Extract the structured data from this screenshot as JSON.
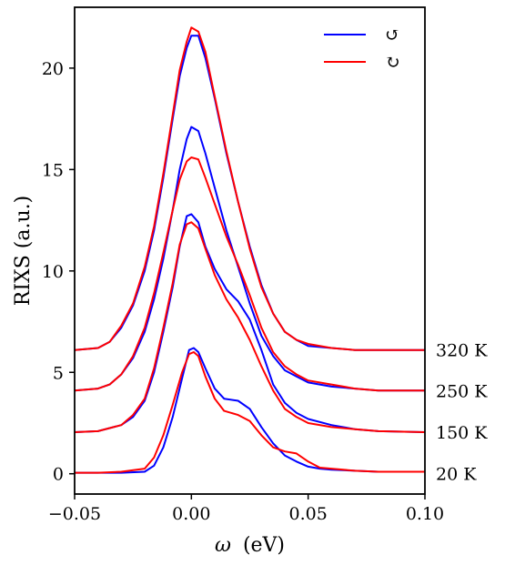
{
  "chart_data": {
    "type": "line",
    "xlabel_symbol": "ω",
    "xlabel_unit": "(eV)",
    "ylabel": "RIXS (a.u.)",
    "xlim": [
      -0.05,
      0.1
    ],
    "ylim": [
      -1.0,
      23.0
    ],
    "xticks": [
      -0.05,
      0.0,
      0.05,
      0.1
    ],
    "xtick_labels": [
      "−0.05",
      "0.00",
      "0.05",
      "0.10"
    ],
    "yticks": [
      0,
      5,
      10,
      15,
      20
    ],
    "ytick_labels": [
      "0",
      "5",
      "10",
      "15",
      "20"
    ],
    "legend": {
      "position": "top-right",
      "entries": [
        {
          "label": "↺",
          "color": "#0000ff"
        },
        {
          "label": "↻",
          "color": "#ff0000"
        }
      ]
    },
    "series": [
      {
        "temperature": "20 K",
        "label_y": 0.0,
        "color": "#0000ff",
        "x": [
          -0.05,
          -0.04,
          -0.03,
          -0.02,
          -0.016,
          -0.012,
          -0.008,
          -0.004,
          -0.001,
          0.001,
          0.003,
          0.006,
          0.01,
          0.014,
          0.02,
          0.025,
          0.03,
          0.035,
          0.04,
          0.045,
          0.05,
          0.055,
          0.06,
          0.07,
          0.08,
          0.09,
          0.1
        ],
        "y": [
          0.05,
          0.05,
          0.05,
          0.1,
          0.4,
          1.3,
          2.8,
          4.7,
          6.1,
          6.2,
          6.0,
          5.2,
          4.2,
          3.7,
          3.6,
          3.2,
          2.3,
          1.5,
          0.9,
          0.6,
          0.35,
          0.25,
          0.2,
          0.15,
          0.1,
          0.1,
          0.1
        ]
      },
      {
        "temperature": "20 K",
        "label_y": 0.0,
        "color": "#ff0000",
        "x": [
          -0.05,
          -0.04,
          -0.03,
          -0.02,
          -0.016,
          -0.012,
          -0.008,
          -0.004,
          -0.001,
          0.001,
          0.003,
          0.006,
          0.01,
          0.014,
          0.02,
          0.025,
          0.03,
          0.035,
          0.04,
          0.045,
          0.05,
          0.055,
          0.06,
          0.07,
          0.08,
          0.09,
          0.1
        ],
        "y": [
          0.05,
          0.05,
          0.1,
          0.25,
          0.8,
          1.9,
          3.4,
          5.0,
          5.9,
          6.0,
          5.8,
          4.8,
          3.7,
          3.1,
          2.9,
          2.6,
          1.9,
          1.3,
          1.1,
          1.0,
          0.6,
          0.3,
          0.25,
          0.15,
          0.1,
          0.1,
          0.1
        ]
      },
      {
        "temperature": "150 K",
        "label_y": 2.05,
        "color": "#0000ff",
        "x": [
          -0.05,
          -0.04,
          -0.03,
          -0.025,
          -0.02,
          -0.016,
          -0.012,
          -0.008,
          -0.005,
          -0.002,
          0.0,
          0.003,
          0.006,
          0.01,
          0.015,
          0.02,
          0.025,
          0.03,
          0.035,
          0.04,
          0.045,
          0.05,
          0.06,
          0.07,
          0.08,
          0.1
        ],
        "y": [
          2.05,
          2.1,
          2.4,
          2.8,
          3.6,
          5.0,
          7.0,
          9.2,
          11.2,
          12.7,
          12.8,
          12.4,
          11.2,
          10.1,
          9.1,
          8.5,
          7.6,
          6.1,
          4.4,
          3.5,
          3.0,
          2.7,
          2.4,
          2.2,
          2.1,
          2.05
        ]
      },
      {
        "temperature": "150 K",
        "label_y": 2.05,
        "color": "#ff0000",
        "x": [
          -0.05,
          -0.04,
          -0.03,
          -0.025,
          -0.02,
          -0.016,
          -0.012,
          -0.008,
          -0.005,
          -0.002,
          0.0,
          0.003,
          0.006,
          0.01,
          0.015,
          0.02,
          0.025,
          0.03,
          0.035,
          0.04,
          0.045,
          0.05,
          0.06,
          0.07,
          0.08,
          0.1
        ],
        "y": [
          2.05,
          2.1,
          2.4,
          2.9,
          3.7,
          5.2,
          7.2,
          9.4,
          11.3,
          12.3,
          12.4,
          12.1,
          11.1,
          9.8,
          8.6,
          7.7,
          6.6,
          5.3,
          4.1,
          3.2,
          2.8,
          2.5,
          2.3,
          2.2,
          2.1,
          2.05
        ]
      },
      {
        "temperature": "250 K",
        "label_y": 4.1,
        "color": "#0000ff",
        "x": [
          -0.05,
          -0.04,
          -0.035,
          -0.03,
          -0.025,
          -0.02,
          -0.016,
          -0.012,
          -0.008,
          -0.005,
          -0.002,
          0.0,
          0.003,
          0.006,
          0.01,
          0.015,
          0.02,
          0.025,
          0.03,
          0.035,
          0.04,
          0.045,
          0.05,
          0.06,
          0.07,
          0.08,
          0.1
        ],
        "y": [
          4.1,
          4.2,
          4.4,
          4.9,
          5.7,
          7.0,
          8.6,
          10.6,
          13.0,
          15.0,
          16.5,
          17.1,
          16.9,
          15.8,
          14.1,
          12.0,
          10.2,
          8.4,
          6.8,
          5.8,
          5.1,
          4.8,
          4.5,
          4.3,
          4.2,
          4.1,
          4.1
        ]
      },
      {
        "temperature": "250 K",
        "label_y": 4.1,
        "color": "#ff0000",
        "x": [
          -0.05,
          -0.04,
          -0.035,
          -0.03,
          -0.025,
          -0.02,
          -0.016,
          -0.012,
          -0.008,
          -0.005,
          -0.002,
          0.0,
          0.003,
          0.006,
          0.01,
          0.015,
          0.02,
          0.025,
          0.03,
          0.035,
          0.04,
          0.045,
          0.05,
          0.06,
          0.07,
          0.08,
          0.1
        ],
        "y": [
          4.1,
          4.2,
          4.4,
          4.9,
          5.8,
          7.2,
          8.9,
          10.9,
          13.0,
          14.5,
          15.4,
          15.6,
          15.5,
          14.6,
          13.3,
          11.7,
          10.3,
          8.8,
          7.2,
          6.0,
          5.3,
          4.9,
          4.6,
          4.4,
          4.2,
          4.1,
          4.1
        ]
      },
      {
        "temperature": "320 K",
        "label_y": 6.1,
        "color": "#0000ff",
        "x": [
          -0.05,
          -0.04,
          -0.035,
          -0.03,
          -0.025,
          -0.02,
          -0.016,
          -0.012,
          -0.008,
          -0.005,
          -0.002,
          0.0,
          0.003,
          0.006,
          0.01,
          0.015,
          0.02,
          0.025,
          0.03,
          0.035,
          0.04,
          0.045,
          0.05,
          0.06,
          0.07,
          0.08,
          0.1
        ],
        "y": [
          6.1,
          6.2,
          6.5,
          7.2,
          8.3,
          10.0,
          12.0,
          14.6,
          17.5,
          19.6,
          21.0,
          21.6,
          21.6,
          20.5,
          18.5,
          15.8,
          13.4,
          11.2,
          9.3,
          7.9,
          7.0,
          6.6,
          6.3,
          6.2,
          6.1,
          6.1,
          6.1
        ]
      },
      {
        "temperature": "320 K",
        "label_y": 6.1,
        "color": "#ff0000",
        "x": [
          -0.05,
          -0.04,
          -0.035,
          -0.03,
          -0.025,
          -0.02,
          -0.016,
          -0.012,
          -0.008,
          -0.005,
          -0.002,
          0.0,
          0.003,
          0.006,
          0.01,
          0.015,
          0.02,
          0.025,
          0.03,
          0.035,
          0.04,
          0.045,
          0.05,
          0.06,
          0.07,
          0.08,
          0.1
        ],
        "y": [
          6.1,
          6.2,
          6.5,
          7.3,
          8.4,
          10.2,
          12.2,
          14.8,
          17.7,
          19.9,
          21.3,
          22.0,
          21.8,
          20.8,
          18.6,
          15.9,
          13.4,
          11.1,
          9.2,
          7.9,
          7.0,
          6.6,
          6.4,
          6.2,
          6.1,
          6.1,
          6.1
        ]
      }
    ],
    "temperature_labels": [
      "320 K",
      "250 K",
      "150 K",
      "20 K"
    ]
  }
}
